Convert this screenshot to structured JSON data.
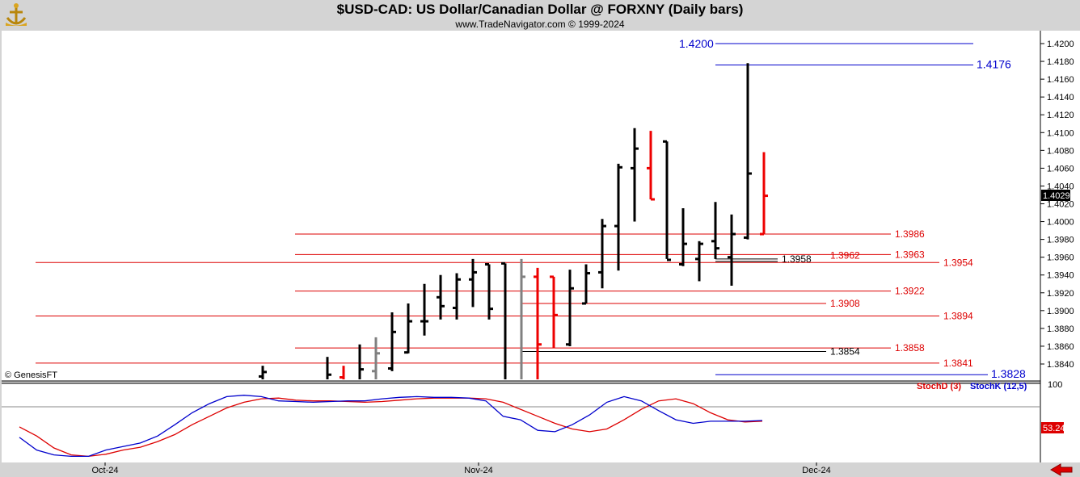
{
  "header": {
    "title": "$USD-CAD:  US Dollar/Canadian Dollar @ FORXNY  (Daily bars)",
    "subtitle": "www.TradeNavigator.com © 1999-2024"
  },
  "watermark": "© GenesisFT",
  "colors": {
    "up_bar": "#000000",
    "down_bar": "#ee0000",
    "inside_bar": "#808080",
    "level_red": "#dd0000",
    "level_black": "#000000",
    "level_blue": "#0000cc",
    "stoch_d": "#dd0000",
    "stoch_k": "#0000cc"
  },
  "chart_data": [
    {
      "type": "ohlc",
      "name": "price",
      "ylim": [
        1.3828,
        1.4214
      ],
      "y_ticks": [
        "1.4200",
        "1.4180",
        "1.4160",
        "1.4140",
        "1.4120",
        "1.4100",
        "1.4080",
        "1.4060",
        "1.4040",
        "1.4020",
        "1.4000",
        "1.3980",
        "1.3960",
        "1.3940",
        "1.3920",
        "1.3900",
        "1.3880",
        "1.3860",
        "1.3840"
      ],
      "last_price": "1.4029",
      "x_labels": [
        "Oct-24",
        "Nov-24",
        "Dec-24"
      ],
      "bars": [
        {
          "date": "2024-10-14",
          "o": 1.3826,
          "h": 1.3838,
          "l": 1.3822,
          "c": 1.3831,
          "color": "black"
        },
        {
          "date": "2024-10-18",
          "o": 1.3818,
          "h": 1.3848,
          "l": 1.3812,
          "c": 1.3828,
          "color": "black"
        },
        {
          "date": "2024-10-21",
          "o": 1.3825,
          "h": 1.3838,
          "l": 1.3812,
          "c": 1.3822,
          "color": "red"
        },
        {
          "date": "2024-10-22",
          "o": 1.382,
          "h": 1.3862,
          "l": 1.3812,
          "c": 1.3834,
          "color": "black"
        },
        {
          "date": "2024-10-23",
          "o": 1.3832,
          "h": 1.387,
          "l": 1.382,
          "c": 1.3852,
          "color": "gray"
        },
        {
          "date": "2024-10-24",
          "o": 1.3835,
          "h": 1.3898,
          "l": 1.3832,
          "c": 1.3876,
          "color": "black"
        },
        {
          "date": "2024-10-25",
          "o": 1.3853,
          "h": 1.3908,
          "l": 1.3852,
          "c": 1.3888,
          "color": "black"
        },
        {
          "date": "2024-10-28",
          "o": 1.3888,
          "h": 1.393,
          "l": 1.3872,
          "c": 1.3888,
          "color": "black"
        },
        {
          "date": "2024-10-29",
          "o": 1.3915,
          "h": 1.394,
          "l": 1.389,
          "c": 1.3905,
          "color": "black"
        },
        {
          "date": "2024-10-30",
          "o": 1.3903,
          "h": 1.3942,
          "l": 1.389,
          "c": 1.3935,
          "color": "black"
        },
        {
          "date": "2024-10-31",
          "o": 1.3935,
          "h": 1.3958,
          "l": 1.3904,
          "c": 1.3943,
          "color": "black"
        },
        {
          "date": "2024-11-01",
          "o": 1.3952,
          "h": 1.3952,
          "l": 1.389,
          "c": 1.3902,
          "color": "black"
        },
        {
          "date": "2024-11-04",
          "o": 1.3953,
          "h": 1.3953,
          "l": 1.3812,
          "c": 1.3812,
          "color": "black"
        },
        {
          "date": "2024-11-05",
          "o": 1.3812,
          "h": 1.3958,
          "l": 1.3812,
          "c": 1.3938,
          "color": "gray"
        },
        {
          "date": "2024-11-06",
          "o": 1.3938,
          "h": 1.3948,
          "l": 1.3812,
          "c": 1.3862,
          "color": "red"
        },
        {
          "date": "2024-11-07",
          "o": 1.3938,
          "h": 1.3938,
          "l": 1.3858,
          "c": 1.3895,
          "color": "red"
        },
        {
          "date": "2024-11-08",
          "o": 1.3862,
          "h": 1.3946,
          "l": 1.386,
          "c": 1.3925,
          "color": "black"
        },
        {
          "date": "2024-11-11",
          "o": 1.3908,
          "h": 1.3952,
          "l": 1.3908,
          "c": 1.3942,
          "color": "black"
        },
        {
          "date": "2024-11-12",
          "o": 1.3943,
          "h": 1.4003,
          "l": 1.3925,
          "c": 1.3995,
          "color": "black"
        },
        {
          "date": "2024-11-13",
          "o": 1.3995,
          "h": 1.4065,
          "l": 1.3945,
          "c": 1.4061,
          "color": "black"
        },
        {
          "date": "2024-11-14",
          "o": 1.406,
          "h": 1.4105,
          "l": 1.4,
          "c": 1.4082,
          "color": "black"
        },
        {
          "date": "2024-11-15",
          "o": 1.406,
          "h": 1.4102,
          "l": 1.4025,
          "c": 1.4025,
          "color": "red"
        },
        {
          "date": "2024-11-18",
          "o": 1.409,
          "h": 1.409,
          "l": 1.3958,
          "c": 1.3957,
          "color": "black"
        },
        {
          "date": "2024-11-19",
          "o": 1.3952,
          "h": 1.4015,
          "l": 1.395,
          "c": 1.3975,
          "color": "black"
        },
        {
          "date": "2024-11-20",
          "o": 1.3958,
          "h": 1.3978,
          "l": 1.3933,
          "c": 1.3975,
          "color": "black"
        },
        {
          "date": "2024-11-21",
          "o": 1.3978,
          "h": 1.4022,
          "l": 1.3958,
          "c": 1.397,
          "color": "black"
        },
        {
          "date": "2024-11-22",
          "o": 1.396,
          "h": 1.4008,
          "l": 1.3928,
          "c": 1.3986,
          "color": "black"
        },
        {
          "date": "2024-11-25",
          "o": 1.3982,
          "h": 1.4178,
          "l": 1.398,
          "c": 1.4054,
          "color": "black"
        },
        {
          "date": "2024-11-26",
          "o": 1.3986,
          "h": 1.4078,
          "l": 1.3986,
          "c": 1.4029,
          "color": "red"
        }
      ],
      "levels": [
        {
          "value": 1.42,
          "label": "1.4200",
          "color": "blue"
        },
        {
          "value": 1.4176,
          "label": "1.4176",
          "color": "blue"
        },
        {
          "value": 1.3986,
          "label": "1.3986",
          "color": "red"
        },
        {
          "value": 1.3963,
          "label": "1.3963",
          "color": "red"
        },
        {
          "value": 1.3962,
          "label": "1.3962",
          "color": "red"
        },
        {
          "value": 1.3958,
          "label": "1.3958",
          "color": "black"
        },
        {
          "value": 1.3954,
          "label": "1.3954",
          "color": "red"
        },
        {
          "value": 1.3922,
          "label": "1.3922",
          "color": "red"
        },
        {
          "value": 1.3908,
          "label": "1.3908",
          "color": "red"
        },
        {
          "value": 1.3894,
          "label": "1.3894",
          "color": "red"
        },
        {
          "value": 1.3858,
          "label": "1.3858",
          "color": "red"
        },
        {
          "value": 1.3854,
          "label": "1.3854",
          "color": "black"
        },
        {
          "value": 1.3841,
          "label": "1.3841",
          "color": "red"
        },
        {
          "value": 1.3828,
          "label": "1.3828",
          "color": "blue"
        }
      ]
    },
    {
      "type": "line",
      "name": "stochastic",
      "ylim": [
        0,
        100
      ],
      "top_tick": "100",
      "last_value": "53.24",
      "series": [
        {
          "name": "StochD (3)",
          "color": "red",
          "values": [
            45,
            32,
            15,
            5,
            3,
            6,
            12,
            16,
            24,
            34,
            48,
            60,
            72,
            80,
            85,
            86,
            83,
            82,
            82,
            81,
            80,
            81,
            83,
            85,
            86,
            86,
            86,
            85,
            80,
            70,
            60,
            50,
            42,
            38,
            42,
            55,
            70,
            82,
            85,
            78,
            65,
            55,
            52,
            53
          ]
        },
        {
          "name": "StochK (12,5)",
          "color": "blue",
          "values": [
            30,
            12,
            5,
            3,
            3,
            12,
            17,
            22,
            32,
            48,
            65,
            78,
            88,
            90,
            88,
            82,
            81,
            80,
            81,
            82,
            82,
            85,
            87,
            88,
            87,
            87,
            86,
            82,
            60,
            55,
            40,
            38,
            48,
            62,
            80,
            88,
            82,
            68,
            55,
            50,
            53,
            53,
            53,
            54
          ]
        }
      ]
    }
  ]
}
